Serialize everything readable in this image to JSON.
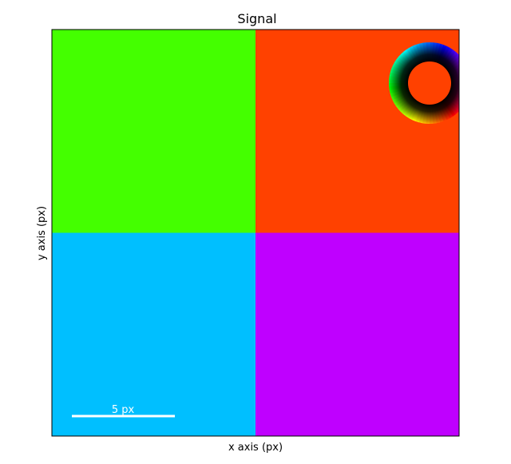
{
  "chart_data": {
    "type": "heatmap",
    "title": "Signal",
    "xlabel": "x axis (px)",
    "ylabel": "y axis (px)",
    "grid": false,
    "ticks": "none",
    "cells": [
      {
        "row": 0,
        "col": 0,
        "color": "#44ff00"
      },
      {
        "row": 0,
        "col": 1,
        "color": "#ff4100"
      },
      {
        "row": 1,
        "col": 0,
        "color": "#00bfff"
      },
      {
        "row": 1,
        "col": 1,
        "color": "#bf00ff"
      }
    ],
    "scalebar": {
      "label": "5 px",
      "color": "#ffffff",
      "location": "bottom-left"
    },
    "colorwheel": {
      "location": "top-right",
      "type": "hue-saturation"
    }
  }
}
